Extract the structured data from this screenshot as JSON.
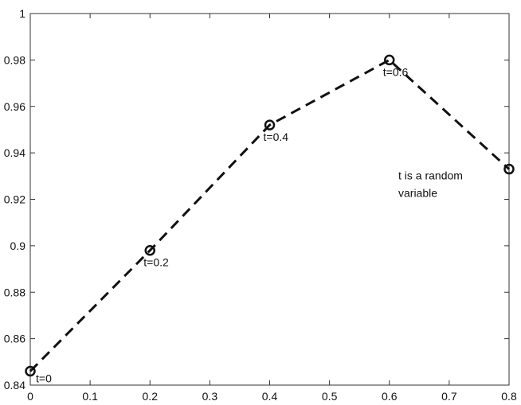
{
  "chart_data": {
    "type": "line",
    "title": "",
    "xlabel": "",
    "ylabel": "",
    "x": [
      0,
      0.2,
      0.4,
      0.6,
      0.8
    ],
    "series": [
      {
        "values": [
          0.846,
          0.898,
          0.952,
          0.98,
          0.933
        ],
        "point_labels": [
          "t=0",
          "t=0.2",
          "t=0.4",
          "t=0.6",
          ""
        ]
      }
    ],
    "xlim": [
      0,
      0.8
    ],
    "ylim": [
      0.84,
      1.0
    ],
    "x_ticks": [
      0,
      0.1,
      0.2,
      0.3,
      0.4,
      0.5,
      0.6,
      0.7,
      0.8
    ],
    "x_tick_labels": [
      "0",
      "0.1",
      "0.2",
      "0.3",
      "0.4",
      "0.5",
      "0.6",
      "0.7",
      "0.8"
    ],
    "y_ticks": [
      0.84,
      0.86,
      0.88,
      0.9,
      0.92,
      0.94,
      0.96,
      0.98,
      1.0
    ],
    "y_tick_labels": [
      "0.84",
      "0.86",
      "0.88",
      "0.9",
      "0.92",
      "0.94",
      "0.96",
      "0.98",
      "1"
    ],
    "annotation": {
      "lines": [
        "t is a random",
        "variable"
      ]
    },
    "line_style": "dashed",
    "marker": "circle-open",
    "grid": false,
    "legend": false
  },
  "colors": {
    "line": "#111111",
    "axes": "#333333",
    "background": "#ffffff"
  }
}
